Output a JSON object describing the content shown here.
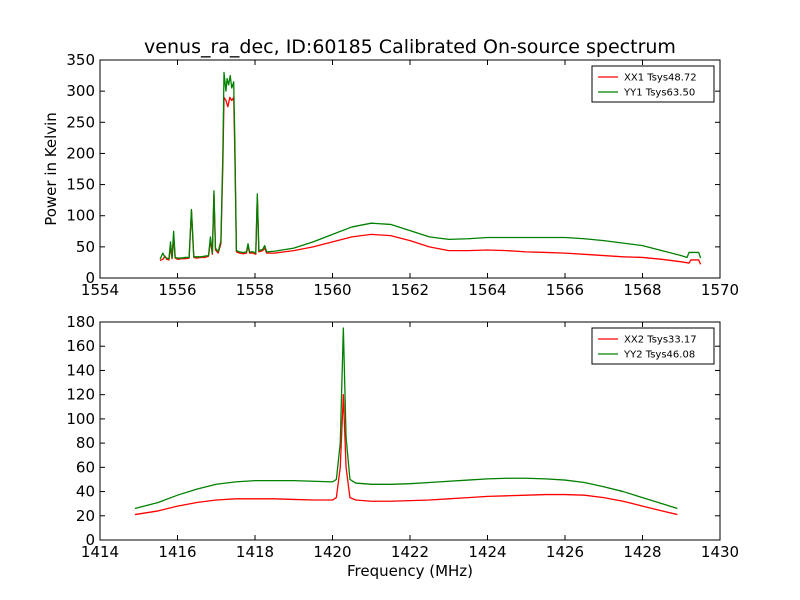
{
  "title": "venus_ra_dec, ID:60185 Calibrated On-source spectrum",
  "chart_data": [
    {
      "type": "line",
      "xlabel": "",
      "ylabel": "Power in Kelvin",
      "xlim": [
        1554,
        1570
      ],
      "ylim": [
        0,
        350
      ],
      "xticks": [
        1554,
        1556,
        1558,
        1560,
        1562,
        1564,
        1566,
        1568,
        1570
      ],
      "yticks": [
        0,
        50,
        100,
        150,
        200,
        250,
        300,
        350
      ],
      "legend_position": "top-right",
      "series": [
        {
          "name": "XX1 Tsys48.72",
          "color": "#ff0000",
          "points": [
            [
              1555.55,
              28
            ],
            [
              1555.62,
              30
            ],
            [
              1555.68,
              35
            ],
            [
              1555.72,
              30
            ],
            [
              1555.78,
              29
            ],
            [
              1555.82,
              50
            ],
            [
              1555.86,
              31
            ],
            [
              1555.9,
              66
            ],
            [
              1555.94,
              32
            ],
            [
              1556.0,
              30
            ],
            [
              1556.1,
              31
            ],
            [
              1556.2,
              31
            ],
            [
              1556.3,
              32
            ],
            [
              1556.36,
              108
            ],
            [
              1556.42,
              33
            ],
            [
              1556.5,
              32
            ],
            [
              1556.6,
              33
            ],
            [
              1556.7,
              33
            ],
            [
              1556.8,
              35
            ],
            [
              1556.85,
              60
            ],
            [
              1556.9,
              38
            ],
            [
              1556.94,
              135
            ],
            [
              1556.98,
              45
            ],
            [
              1557.05,
              40
            ],
            [
              1557.12,
              55
            ],
            [
              1557.17,
              180
            ],
            [
              1557.2,
              290
            ],
            [
              1557.25,
              285
            ],
            [
              1557.3,
              275
            ],
            [
              1557.35,
              290
            ],
            [
              1557.4,
              285
            ],
            [
              1557.45,
              290
            ],
            [
              1557.48,
              200
            ],
            [
              1557.52,
              42
            ],
            [
              1557.6,
              40
            ],
            [
              1557.7,
              39
            ],
            [
              1557.78,
              40
            ],
            [
              1557.82,
              52
            ],
            [
              1557.86,
              40
            ],
            [
              1557.95,
              40
            ],
            [
              1558.02,
              38
            ],
            [
              1558.06,
              130
            ],
            [
              1558.1,
              42
            ],
            [
              1558.2,
              44
            ],
            [
              1558.25,
              48
            ],
            [
              1558.3,
              40
            ],
            [
              1558.5,
              40
            ],
            [
              1559.0,
              44
            ],
            [
              1559.5,
              50
            ],
            [
              1560.0,
              58
            ],
            [
              1560.5,
              66
            ],
            [
              1561.0,
              70
            ],
            [
              1561.5,
              68
            ],
            [
              1562.0,
              60
            ],
            [
              1562.5,
              50
            ],
            [
              1563.0,
              44
            ],
            [
              1563.5,
              44
            ],
            [
              1564.0,
              45
            ],
            [
              1564.5,
              44
            ],
            [
              1565.0,
              42
            ],
            [
              1565.5,
              41
            ],
            [
              1566.0,
              40
            ],
            [
              1566.5,
              38
            ],
            [
              1567.0,
              36
            ],
            [
              1567.5,
              34
            ],
            [
              1568.0,
              33
            ],
            [
              1568.5,
              30
            ],
            [
              1569.0,
              26
            ],
            [
              1569.2,
              24
            ],
            [
              1569.25,
              29
            ],
            [
              1569.45,
              29
            ],
            [
              1569.5,
              22
            ]
          ]
        },
        {
          "name": "YY1 Tsys63.50",
          "color": "#008000",
          "points": [
            [
              1555.55,
              30
            ],
            [
              1555.62,
              40
            ],
            [
              1555.68,
              33
            ],
            [
              1555.72,
              32
            ],
            [
              1555.78,
              31
            ],
            [
              1555.82,
              58
            ],
            [
              1555.86,
              32
            ],
            [
              1555.9,
              75
            ],
            [
              1555.94,
              33
            ],
            [
              1556.0,
              32
            ],
            [
              1556.1,
              32
            ],
            [
              1556.2,
              33
            ],
            [
              1556.3,
              33
            ],
            [
              1556.36,
              110
            ],
            [
              1556.42,
              34
            ],
            [
              1556.5,
              34
            ],
            [
              1556.6,
              34
            ],
            [
              1556.7,
              35
            ],
            [
              1556.8,
              36
            ],
            [
              1556.85,
              66
            ],
            [
              1556.9,
              40
            ],
            [
              1556.94,
              140
            ],
            [
              1556.98,
              48
            ],
            [
              1557.05,
              42
            ],
            [
              1557.12,
              60
            ],
            [
              1557.17,
              200
            ],
            [
              1557.2,
              330
            ],
            [
              1557.25,
              300
            ],
            [
              1557.28,
              320
            ],
            [
              1557.32,
              310
            ],
            [
              1557.36,
              325
            ],
            [
              1557.4,
              305
            ],
            [
              1557.45,
              315
            ],
            [
              1557.48,
              220
            ],
            [
              1557.52,
              44
            ],
            [
              1557.6,
              42
            ],
            [
              1557.7,
              41
            ],
            [
              1557.78,
              42
            ],
            [
              1557.82,
              55
            ],
            [
              1557.86,
              42
            ],
            [
              1557.95,
              42
            ],
            [
              1558.02,
              40
            ],
            [
              1558.06,
              135
            ],
            [
              1558.1,
              44
            ],
            [
              1558.2,
              46
            ],
            [
              1558.25,
              52
            ],
            [
              1558.3,
              42
            ],
            [
              1558.5,
              43
            ],
            [
              1559.0,
              48
            ],
            [
              1559.5,
              58
            ],
            [
              1560.0,
              70
            ],
            [
              1560.5,
              82
            ],
            [
              1561.0,
              88
            ],
            [
              1561.5,
              86
            ],
            [
              1562.0,
              76
            ],
            [
              1562.5,
              66
            ],
            [
              1563.0,
              62
            ],
            [
              1563.5,
              63
            ],
            [
              1564.0,
              65
            ],
            [
              1564.5,
              65
            ],
            [
              1565.0,
              65
            ],
            [
              1565.5,
              65
            ],
            [
              1566.0,
              65
            ],
            [
              1566.5,
              63
            ],
            [
              1567.0,
              60
            ],
            [
              1567.5,
              56
            ],
            [
              1568.0,
              52
            ],
            [
              1568.5,
              44
            ],
            [
              1569.0,
              36
            ],
            [
              1569.15,
              33
            ],
            [
              1569.2,
              41
            ],
            [
              1569.45,
              41
            ],
            [
              1569.5,
              32
            ]
          ]
        }
      ]
    },
    {
      "type": "line",
      "xlabel": "Frequency (MHz)",
      "ylabel": "",
      "xlim": [
        1414,
        1430
      ],
      "ylim": [
        0,
        180
      ],
      "xticks": [
        1414,
        1416,
        1418,
        1420,
        1422,
        1424,
        1426,
        1428,
        1430
      ],
      "yticks": [
        0,
        20,
        40,
        60,
        80,
        100,
        120,
        140,
        160,
        180
      ],
      "legend_position": "top-right",
      "series": [
        {
          "name": "XX2 Tsys33.17",
          "color": "#ff0000",
          "points": [
            [
              1414.9,
              21
            ],
            [
              1415.5,
              24
            ],
            [
              1416.0,
              28
            ],
            [
              1416.5,
              31
            ],
            [
              1417.0,
              33
            ],
            [
              1417.5,
              34
            ],
            [
              1418.0,
              34
            ],
            [
              1418.5,
              34
            ],
            [
              1419.0,
              33.5
            ],
            [
              1419.5,
              33
            ],
            [
              1420.0,
              33
            ],
            [
              1420.1,
              35
            ],
            [
              1420.2,
              60
            ],
            [
              1420.28,
              120
            ],
            [
              1420.35,
              60
            ],
            [
              1420.45,
              35
            ],
            [
              1420.6,
              33
            ],
            [
              1421.0,
              32
            ],
            [
              1421.5,
              32
            ],
            [
              1422.0,
              32.5
            ],
            [
              1422.5,
              33
            ],
            [
              1423.0,
              34
            ],
            [
              1423.5,
              35
            ],
            [
              1424.0,
              36
            ],
            [
              1424.5,
              36.5
            ],
            [
              1425.0,
              37
            ],
            [
              1425.5,
              37.5
            ],
            [
              1426.0,
              37.5
            ],
            [
              1426.5,
              37
            ],
            [
              1427.0,
              35
            ],
            [
              1427.5,
              32
            ],
            [
              1428.0,
              28
            ],
            [
              1428.5,
              24
            ],
            [
              1428.9,
              21
            ]
          ]
        },
        {
          "name": "YY2 Tsys46.08",
          "color": "#008000",
          "points": [
            [
              1414.9,
              26
            ],
            [
              1415.5,
              31
            ],
            [
              1416.0,
              37
            ],
            [
              1416.5,
              42
            ],
            [
              1417.0,
              46
            ],
            [
              1417.5,
              48
            ],
            [
              1418.0,
              49
            ],
            [
              1418.5,
              49
            ],
            [
              1419.0,
              49
            ],
            [
              1419.5,
              48.5
            ],
            [
              1420.0,
              48
            ],
            [
              1420.1,
              50
            ],
            [
              1420.2,
              80
            ],
            [
              1420.28,
              175
            ],
            [
              1420.35,
              85
            ],
            [
              1420.45,
              50
            ],
            [
              1420.6,
              47
            ],
            [
              1421.0,
              46
            ],
            [
              1421.5,
              46
            ],
            [
              1422.0,
              46.5
            ],
            [
              1422.5,
              47.5
            ],
            [
              1423.0,
              48.5
            ],
            [
              1423.5,
              49.5
            ],
            [
              1424.0,
              50.5
            ],
            [
              1424.5,
              51
            ],
            [
              1425.0,
              51
            ],
            [
              1425.5,
              50.5
            ],
            [
              1426.0,
              49.5
            ],
            [
              1426.5,
              47.5
            ],
            [
              1427.0,
              44
            ],
            [
              1427.5,
              40
            ],
            [
              1428.0,
              35
            ],
            [
              1428.5,
              30
            ],
            [
              1428.9,
              26
            ]
          ]
        }
      ]
    }
  ]
}
